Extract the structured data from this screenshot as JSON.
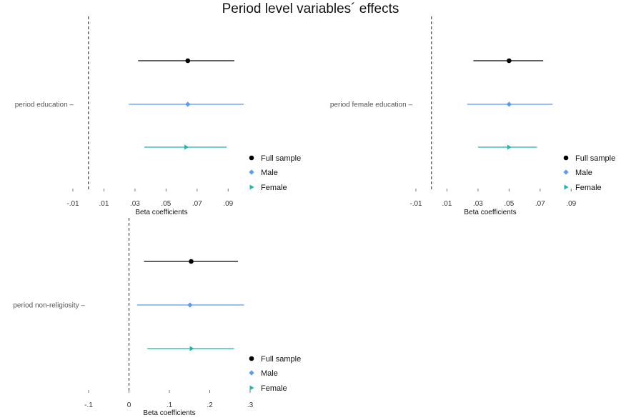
{
  "title": "Period level variables´ effects",
  "colors": {
    "full": "#000000",
    "male": "#5b9bf0",
    "female": "#20b5a8"
  },
  "legend": [
    "Full sample",
    "Male",
    "Female"
  ],
  "chart_data": [
    {
      "type": "scatter",
      "category": "period education",
      "xlabel": "Beta coefficients",
      "xlim": [
        -0.01,
        0.1
      ],
      "ticks": [
        -0.01,
        0.01,
        0.03,
        0.05,
        0.07,
        0.09
      ],
      "tick_labels": [
        "-.01",
        ".01",
        ".03",
        ".05",
        ".07",
        ".09"
      ],
      "reference_line": 0,
      "series": [
        {
          "name": "Full sample",
          "estimate": 0.064,
          "ci": [
            0.032,
            0.094
          ]
        },
        {
          "name": "Male",
          "estimate": 0.064,
          "ci": [
            0.026,
            0.1
          ]
        },
        {
          "name": "Female",
          "estimate": 0.063,
          "ci": [
            0.036,
            0.089
          ]
        }
      ]
    },
    {
      "type": "scatter",
      "category": "period female education",
      "xlabel": "Beta coefficients",
      "xlim": [
        -0.01,
        0.1
      ],
      "ticks": [
        -0.01,
        0.01,
        0.03,
        0.05,
        0.07,
        0.09
      ],
      "tick_labels": [
        "-.01",
        ".01",
        ".03",
        ".05",
        ".07",
        ".09"
      ],
      "reference_line": 0,
      "series": [
        {
          "name": "Full sample",
          "estimate": 0.05,
          "ci": [
            0.027,
            0.072
          ]
        },
        {
          "name": "Male",
          "estimate": 0.05,
          "ci": [
            0.023,
            0.078
          ]
        },
        {
          "name": "Female",
          "estimate": 0.05,
          "ci": [
            0.03,
            0.068
          ]
        }
      ]
    },
    {
      "type": "scatter",
      "category": "period non-religiosity",
      "xlabel": "Beta coefficients",
      "xlim": [
        -0.1,
        0.3
      ],
      "ticks": [
        -0.1,
        0,
        0.1,
        0.2,
        0.3
      ],
      "tick_labels": [
        "-.1",
        "0",
        ".1",
        ".2",
        ".3"
      ],
      "reference_line": 0,
      "series": [
        {
          "name": "Full sample",
          "estimate": 0.154,
          "ci": [
            0.037,
            0.27
          ]
        },
        {
          "name": "Male",
          "estimate": 0.151,
          "ci": [
            0.02,
            0.285
          ]
        },
        {
          "name": "Female",
          "estimate": 0.155,
          "ci": [
            0.045,
            0.26
          ]
        }
      ]
    }
  ]
}
